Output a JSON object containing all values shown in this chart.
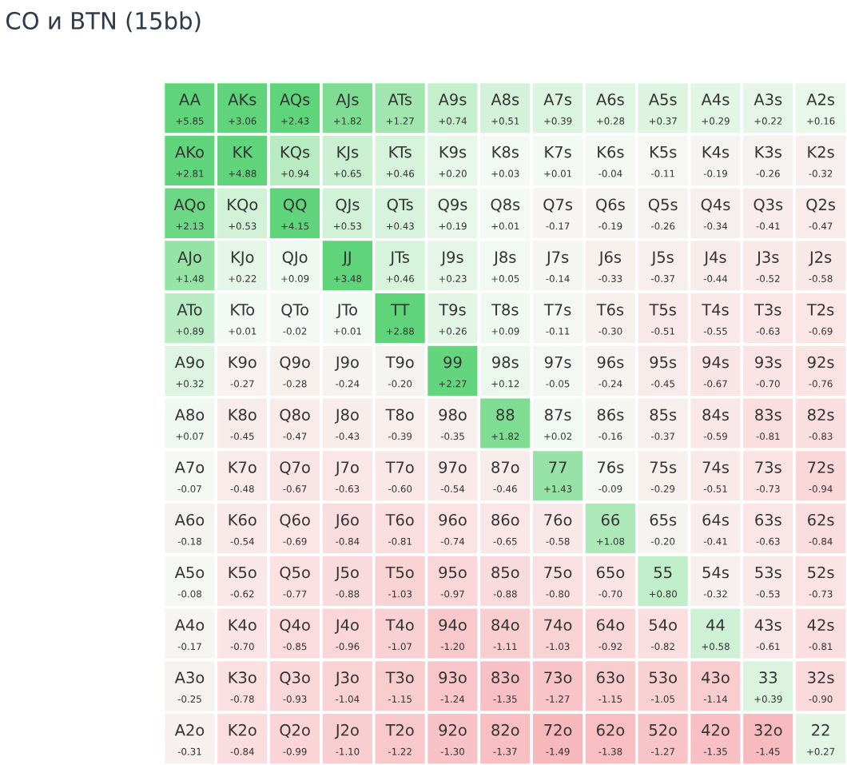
{
  "chart_data": {
    "type": "heatmap",
    "title": "CO и BTN (15bb)",
    "categories": [
      null,
      null,
      null,
      null,
      null,
      null,
      null,
      null,
      null,
      null,
      null,
      null,
      null
    ],
    "y_categories": [
      null,
      null,
      null,
      null,
      null,
      null,
      null,
      null,
      null,
      null,
      null,
      null,
      null
    ],
    "cells": [
      [
        5.85,
        3.06,
        2.43,
        1.82,
        1.27,
        0.74,
        0.51,
        0.39,
        0.28,
        0.37,
        0.29,
        0.22,
        0.16
      ],
      [
        2.81,
        4.88,
        0.94,
        0.65,
        0.46,
        0.2,
        0.03,
        0.01,
        -0.04,
        -0.11,
        -0.19,
        -0.26,
        -0.32
      ],
      [
        2.13,
        0.53,
        4.15,
        0.53,
        0.43,
        0.19,
        0.01,
        -0.17,
        -0.19,
        -0.26,
        -0.34,
        -0.41,
        -0.47
      ],
      [
        1.48,
        0.22,
        0.09,
        3.48,
        0.46,
        0.23,
        0.05,
        -0.14,
        -0.33,
        -0.37,
        -0.44,
        -0.52,
        -0.58
      ],
      [
        0.89,
        0.01,
        -0.02,
        0.01,
        2.88,
        0.26,
        0.09,
        -0.11,
        -0.3,
        -0.51,
        -0.55,
        -0.63,
        -0.69
      ],
      [
        0.32,
        -0.27,
        -0.28,
        -0.24,
        -0.2,
        2.27,
        0.12,
        -0.05,
        -0.24,
        -0.45,
        -0.67,
        -0.7,
        -0.76
      ],
      [
        0.07,
        -0.45,
        -0.47,
        -0.43,
        -0.39,
        -0.35,
        1.82,
        0.02,
        -0.16,
        -0.37,
        -0.59,
        -0.81,
        -0.83
      ],
      [
        -0.07,
        -0.48,
        -0.67,
        -0.63,
        -0.6,
        -0.54,
        -0.46,
        1.43,
        -0.09,
        -0.29,
        -0.51,
        -0.73,
        -0.94
      ],
      [
        -0.18,
        -0.54,
        -0.69,
        -0.84,
        -0.81,
        -0.74,
        -0.65,
        -0.58,
        1.08,
        -0.2,
        -0.41,
        -0.63,
        -0.84
      ],
      [
        -0.08,
        -0.62,
        -0.77,
        -0.88,
        -1.03,
        -0.97,
        -0.88,
        -0.8,
        -0.7,
        0.8,
        -0.32,
        -0.53,
        -0.73
      ],
      [
        -0.17,
        -0.7,
        -0.85,
        -0.96,
        -1.07,
        -1.2,
        -1.11,
        -1.03,
        -0.92,
        -0.82,
        0.58,
        -0.61,
        -0.81
      ],
      [
        -0.25,
        -0.78,
        -0.93,
        -1.04,
        -1.15,
        -1.24,
        -1.35,
        -1.27,
        -1.15,
        -1.05,
        -1.14,
        0.39,
        -0.9
      ],
      [
        -0.31,
        -0.84,
        -0.99,
        -1.1,
        -1.22,
        -1.3,
        -1.37,
        -1.49,
        -1.38,
        -1.27,
        -1.35,
        -1.45,
        0.27
      ]
    ],
    "cell_labels": [
      [
        "+5.85",
        "+3.06",
        "+2.43",
        "+1.82",
        "+1.27",
        "+0.74",
        "+0.51",
        "+0.39",
        "+0.28",
        "+0.37",
        "+0.29",
        "+0.22",
        "+0.16"
      ],
      [
        "+2.81",
        "+4.88",
        "+0.94",
        "+0.65",
        "+0.46",
        "+0.20",
        "+0.03",
        "+0.01",
        "-0.04",
        "-0.11",
        "-0.19",
        "-0.26",
        "-0.32"
      ],
      [
        "+2.13",
        "+0.53",
        "+4.15",
        "+0.53",
        "+0.43",
        "+0.19",
        "+0.01",
        "-0.17",
        "-0.19",
        "-0.26",
        "-0.34",
        "-0.41",
        "-0.47"
      ],
      [
        "+1.48",
        "+0.22",
        "+0.09",
        "+3.48",
        "+0.46",
        "+0.23",
        "+0.05",
        "-0.14",
        "-0.33",
        "-0.37",
        "-0.44",
        "-0.52",
        "-0.58"
      ],
      [
        "+0.89",
        "+0.01",
        "-0.02",
        "+0.01",
        "+2.88",
        "+0.26",
        "+0.09",
        "-0.11",
        "-0.30",
        "-0.51",
        "-0.55",
        "-0.63",
        "-0.69"
      ],
      [
        "+0.32",
        "-0.27",
        "-0.28",
        "-0.24",
        "-0.20",
        "+2.27",
        "+0.12",
        "-0.05",
        "-0.24",
        "-0.45",
        "-0.67",
        "-0.70",
        "-0.76"
      ],
      [
        "+0.07",
        "-0.45",
        "-0.47",
        "-0.43",
        "-0.39",
        "-0.35",
        "+1.82",
        "+0.02",
        "-0.16",
        "-0.37",
        "-0.59",
        "-0.81",
        "-0.83"
      ],
      [
        "-0.07",
        "-0.48",
        "-0.67",
        "-0.63",
        "-0.60",
        "-0.54",
        "-0.46",
        "+1.43",
        "-0.09",
        "-0.29",
        "-0.51",
        "-0.73",
        "-0.94"
      ],
      [
        "-0.18",
        "-0.54",
        "-0.69",
        "-0.84",
        "-0.81",
        "-0.74",
        "-0.65",
        "-0.58",
        "+1.08",
        "-0.20",
        "-0.41",
        "-0.63",
        "-0.84"
      ],
      [
        "-0.08",
        "-0.62",
        "-0.77",
        "-0.88",
        "-1.03",
        "-0.97",
        "-0.88",
        "-0.80",
        "-0.70",
        "+0.80",
        "-0.32",
        "-0.53",
        "-0.73"
      ],
      [
        "-0.17",
        "-0.70",
        "-0.85",
        "-0.96",
        "-1.07",
        "-1.20",
        "-1.11",
        "-1.03",
        "-0.92",
        "-0.82",
        "+0.58",
        "-0.61",
        "-0.81"
      ],
      [
        "-0.25",
        "-0.78",
        "-0.93",
        "-1.04",
        "-1.15",
        "-1.24",
        "-1.35",
        "-1.27",
        "-1.15",
        "-1.05",
        "-1.14",
        "+0.39",
        "-0.90"
      ],
      [
        "-0.31",
        "-0.84",
        "-0.99",
        "-1.10",
        "-1.22",
        "-1.30",
        "-1.37",
        "-1.49",
        "-1.38",
        "-1.27",
        "-1.35",
        "-1.45",
        "+0.27"
      ]
    ],
    "annotations": [
      "AA",
      "AKs",
      "AQs",
      "AJs",
      "ATs",
      "A9s",
      "A8s",
      "A7s",
      "A6s",
      "A5s",
      "A4s",
      "A3s",
      "A2s",
      "AKo",
      "KK",
      "KQs",
      "KJs",
      "KTs",
      "K9s",
      "K8s",
      "K7s",
      "K6s",
      "K5s",
      "K4s",
      "K3s",
      "K2s",
      "AQo",
      "KQo",
      "QQ",
      "QJs",
      "QTs",
      "Q9s",
      "Q8s",
      "Q7s",
      "Q6s",
      "Q5s",
      "Q4s",
      "Q3s",
      "Q2s",
      "AJo",
      "KJo",
      "QJo",
      "JJ",
      "JTs",
      "J9s",
      "J8s",
      "J7s",
      "J6s",
      "J5s",
      "J4s",
      "J3s",
      "J2s",
      "ATo",
      "KTo",
      "QTo",
      "JTo",
      "TT",
      "T9s",
      "T8s",
      "T7s",
      "T6s",
      "T5s",
      "T4s",
      "T3s",
      "T2s",
      "A9o",
      "K9o",
      "Q9o",
      "J9o",
      "T9o",
      "99",
      "98s",
      "97s",
      "96s",
      "95s",
      "94s",
      "93s",
      "92s",
      "A8o",
      "K8o",
      "Q8o",
      "J8o",
      "T8o",
      "98o",
      "88",
      "87s",
      "86s",
      "85s",
      "84s",
      "83s",
      "82s",
      "A7o",
      "K7o",
      "Q7o",
      "J7o",
      "T7o",
      "97o",
      "87o",
      "77",
      "76s",
      "75s",
      "74s",
      "73s",
      "72s",
      "A6o",
      "K6o",
      "Q6o",
      "J6o",
      "T6o",
      "96o",
      "86o",
      "76o",
      "66",
      "65s",
      "64s",
      "63s",
      "62s",
      "A5o",
      "K5o",
      "Q5o",
      "J5o",
      "T5o",
      "95o",
      "85o",
      "75o",
      "65o",
      "55",
      "54s",
      "53s",
      "52s",
      "A4o",
      "K4o",
      "Q4o",
      "J4o",
      "T4o",
      "94o",
      "84o",
      "74o",
      "64o",
      "54o",
      "44",
      "43s",
      "42s",
      "A3o",
      "K3o",
      "Q3o",
      "J3o",
      "T3o",
      "93o",
      "83o",
      "73o",
      "63o",
      "53o",
      "43o",
      "33",
      "32s",
      "A2o",
      "K2o",
      "Q2o",
      "J2o",
      "T2o",
      "92o",
      "82o",
      "72o",
      "62o",
      "52o",
      "42o",
      "32o",
      "22"
    ]
  }
}
